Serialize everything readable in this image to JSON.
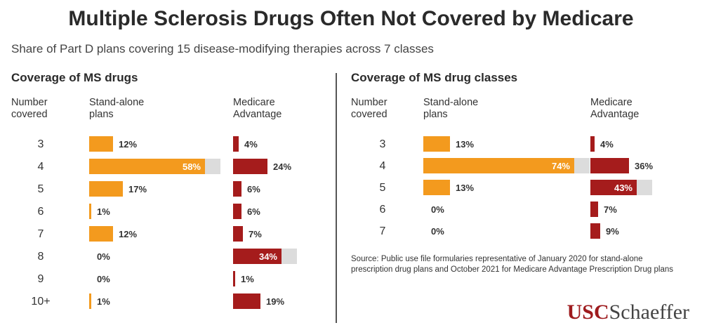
{
  "title": "Multiple Sclerosis Drugs Often Not Covered by Medicare",
  "subtitle": "Share of Part D plans covering 15 disease-modifying therapies across 7 classes",
  "source": "Source: Public use file formularies representative of January 2020 for stand-alone prescription drug plans and October 2021 for Medicare Advantage Prescription Drug plans",
  "logo": {
    "usc": "USC",
    "schaeffer": "Schaeffer"
  },
  "colors": {
    "standalone": "#f39a1e",
    "advantage": "#a51c1c",
    "track": "#dcdcdc"
  },
  "chart_data": [
    {
      "type": "bar",
      "title": "Coverage of MS drugs",
      "row_header": [
        "Number",
        "covered"
      ],
      "standalone_header": [
        "Stand-alone",
        "plans"
      ],
      "advantage_header": [
        "Medicare",
        "Advantage"
      ],
      "categories": [
        "3",
        "4",
        "5",
        "6",
        "7",
        "8",
        "9",
        "10+"
      ],
      "series": [
        {
          "name": "Stand-alone plans",
          "values": [
            12,
            58,
            17,
            1,
            12,
            0,
            0,
            1
          ],
          "labels": [
            "12%",
            "58%",
            "17%",
            "1%",
            "12%",
            "0%",
            "0%",
            "1%"
          ]
        },
        {
          "name": "Medicare Advantage",
          "values": [
            4,
            24,
            6,
            6,
            7,
            34,
            1,
            19
          ],
          "labels": [
            "4%",
            "24%",
            "6%",
            "6%",
            "7%",
            "34%",
            "1%",
            "19%"
          ]
        }
      ],
      "max_value": 58
    },
    {
      "type": "bar",
      "title": "Coverage of MS drug classes",
      "row_header": [
        "Number",
        "covered"
      ],
      "standalone_header": [
        "Stand-alone",
        "plans"
      ],
      "advantage_header": [
        "Medicare",
        "Advantage"
      ],
      "categories": [
        "3",
        "4",
        "5",
        "6",
        "7"
      ],
      "series": [
        {
          "name": "Stand-alone plans",
          "values": [
            13,
            74,
            13,
            0,
            0
          ],
          "labels": [
            "13%",
            "74%",
            "13%",
            "0%",
            "0%"
          ]
        },
        {
          "name": "Medicare Advantage",
          "values": [
            4,
            36,
            43,
            7,
            9
          ],
          "labels": [
            "4%",
            "36%",
            "43%",
            "7%",
            "9%"
          ]
        }
      ],
      "max_value": 74
    }
  ]
}
